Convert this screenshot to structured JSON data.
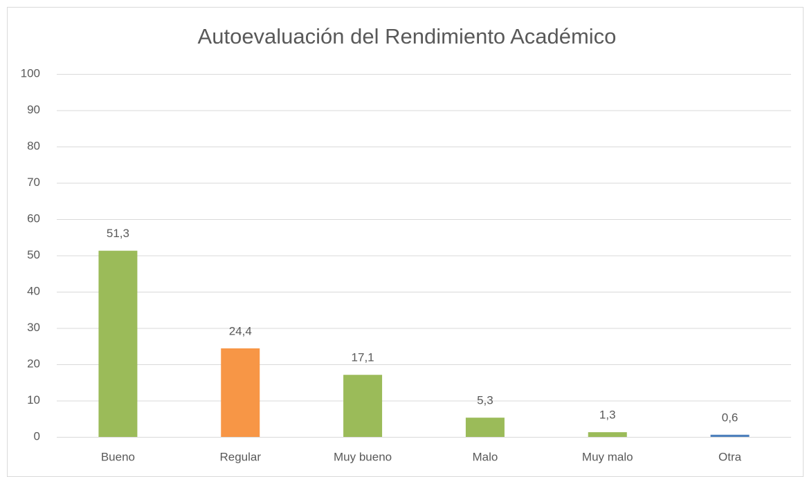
{
  "chart_data": {
    "type": "bar",
    "title": "Autoevaluación del Rendimiento Académico",
    "categories": [
      "Bueno",
      "Regular",
      "Muy bueno",
      "Malo",
      "Muy malo",
      "Otra"
    ],
    "values": [
      51.3,
      24.4,
      17.1,
      5.3,
      1.3,
      0.6
    ],
    "value_labels": [
      "51,3",
      "24,4",
      "17,1",
      "5,3",
      "1,3",
      "0,6"
    ],
    "colors": [
      "#9bbb59",
      "#f79646",
      "#9bbb59",
      "#9bbb59",
      "#9bbb59",
      "#4f81bd"
    ],
    "ylim": [
      0,
      100
    ],
    "yticks": [
      0,
      10,
      20,
      30,
      40,
      50,
      60,
      70,
      80,
      90,
      100
    ],
    "grid": true
  }
}
